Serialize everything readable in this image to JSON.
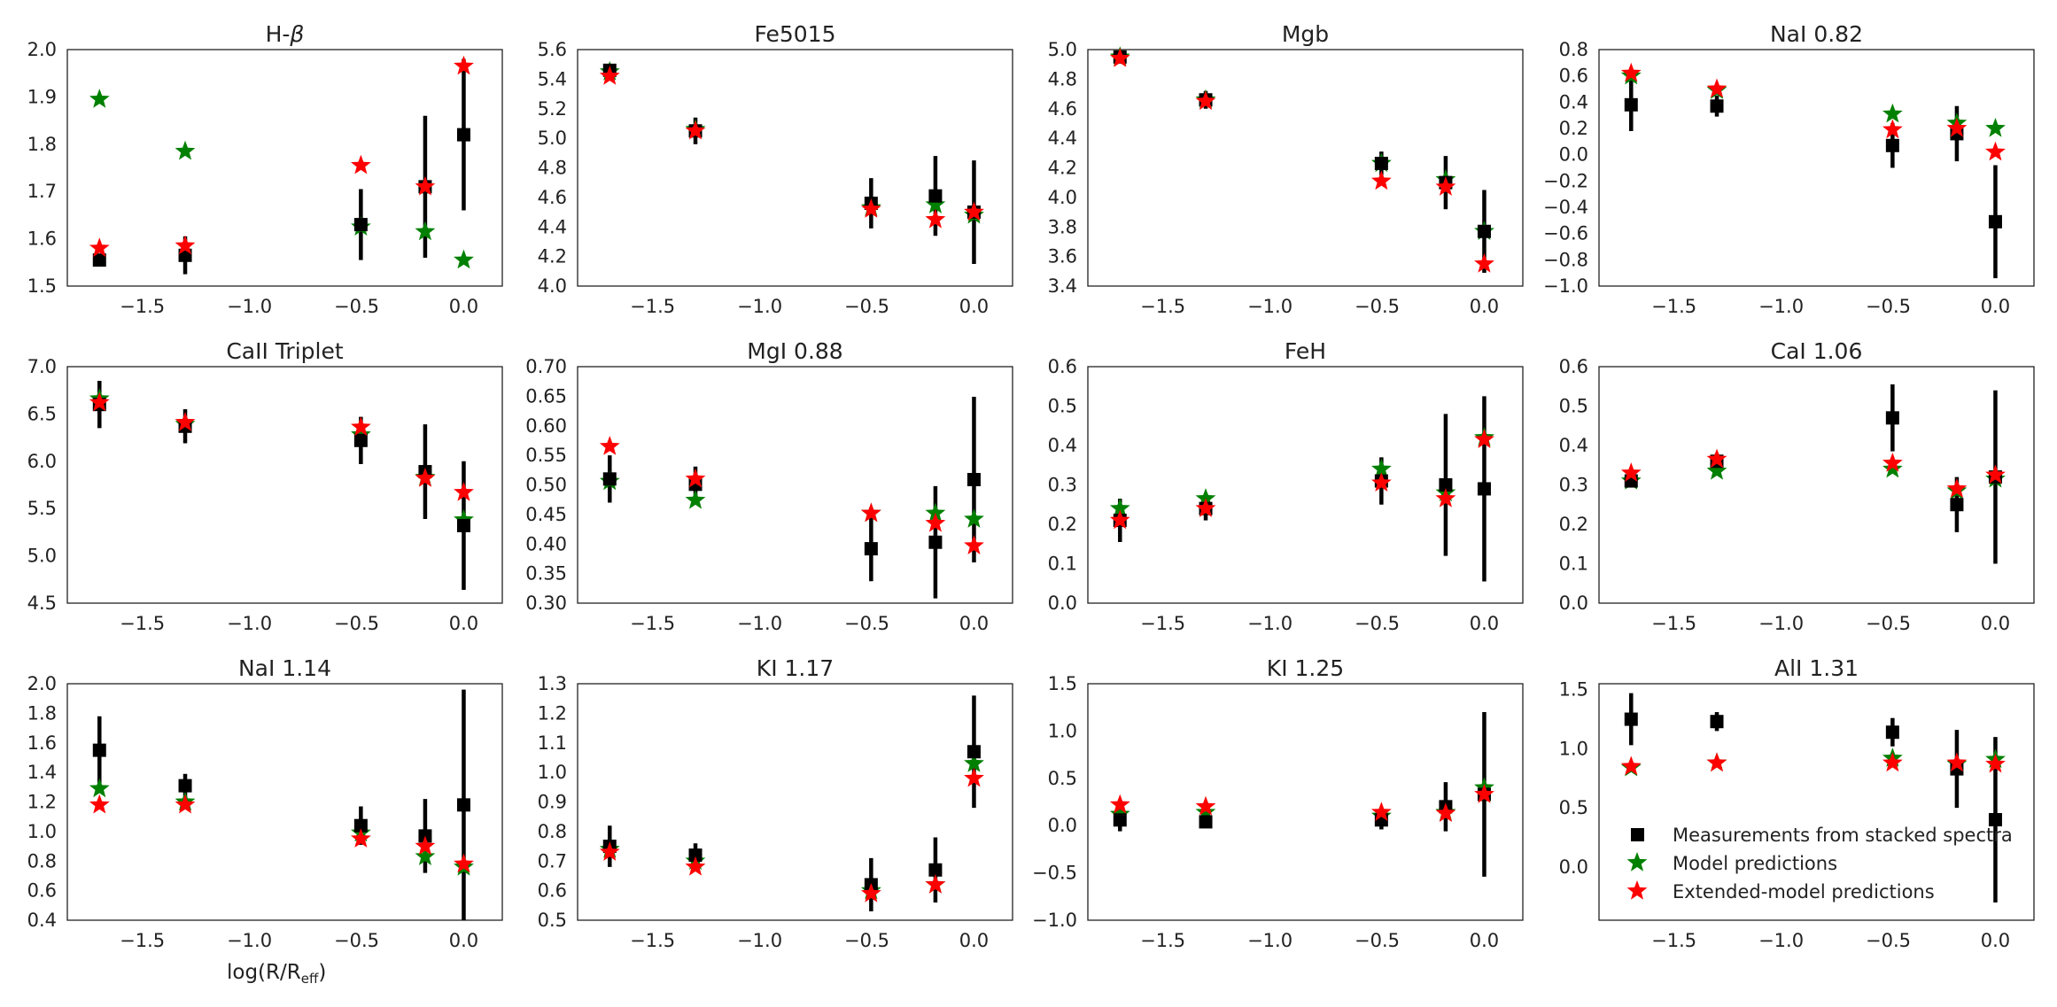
{
  "figure": {
    "xlabel_main": "log(R/R",
    "xlabel_sub": "eff",
    "xlabel_close": ")"
  },
  "legend": {
    "measurements": "Measurements from stacked spectra",
    "model": "Model predictions",
    "extended": "Extended-model predictions"
  },
  "colors": {
    "measurements": "#000000",
    "model": "#008000",
    "extended": "#ff0000",
    "axes": "#222222"
  },
  "chart_data": [
    {
      "type": "scatter",
      "title_main": "H-",
      "title_greek": "β",
      "xlim": [
        -1.85,
        0.18
      ],
      "ylim": [
        1.5,
        2.0
      ],
      "xticks": [
        -1.5,
        -1.0,
        -0.5,
        0.0
      ],
      "xtick_labels": [
        "−1.5",
        "−1.0",
        "−0.5",
        "0.0"
      ],
      "yticks": [
        1.5,
        1.6,
        1.7,
        1.8,
        1.9,
        2.0
      ],
      "ytick_labels": [
        "1.5",
        "1.6",
        "1.7",
        "1.8",
        "1.9",
        "2.0"
      ],
      "x": [
        -1.7,
        -1.3,
        -0.48,
        -0.18,
        0.0
      ],
      "measurements": [
        1.555,
        1.565,
        1.63,
        1.71,
        1.82
      ],
      "errors": [
        0.0,
        0.04,
        0.075,
        0.15,
        0.16
      ],
      "model": [
        1.895,
        1.785,
        1.625,
        1.615,
        1.555
      ],
      "extended": [
        1.58,
        1.585,
        1.755,
        1.71,
        1.965
      ]
    },
    {
      "type": "scatter",
      "title_main": "Fe5015",
      "title_greek": "",
      "xlim": [
        -1.85,
        0.18
      ],
      "ylim": [
        4.0,
        5.6
      ],
      "xticks": [
        -1.5,
        -1.0,
        -0.5,
        0.0
      ],
      "xtick_labels": [
        "−1.5",
        "−1.0",
        "−0.5",
        "0.0"
      ],
      "yticks": [
        4.0,
        4.2,
        4.4,
        4.6,
        4.8,
        5.0,
        5.2,
        5.4,
        5.6
      ],
      "ytick_labels": [
        "4.0",
        "4.2",
        "4.4",
        "4.6",
        "4.8",
        "5.0",
        "5.2",
        "5.4",
        "5.6"
      ],
      "x": [
        -1.7,
        -1.3,
        -0.48,
        -0.18,
        0.0
      ],
      "measurements": [
        5.46,
        5.05,
        4.56,
        4.61,
        4.5
      ],
      "errors": [
        0.03,
        0.09,
        0.17,
        0.27,
        0.35
      ],
      "model": [
        5.45,
        5.06,
        4.53,
        4.55,
        4.48
      ],
      "extended": [
        5.42,
        5.05,
        4.52,
        4.45,
        4.5
      ]
    },
    {
      "type": "scatter",
      "title_main": "Mgb",
      "title_greek": "",
      "xlim": [
        -1.85,
        0.18
      ],
      "ylim": [
        3.4,
        5.0
      ],
      "xticks": [
        -1.5,
        -1.0,
        -0.5,
        0.0
      ],
      "xtick_labels": [
        "−1.5",
        "−1.0",
        "−0.5",
        "0.0"
      ],
      "yticks": [
        3.4,
        3.6,
        3.8,
        4.0,
        4.2,
        4.4,
        4.6,
        4.8,
        5.0
      ],
      "ytick_labels": [
        "3.4",
        "3.6",
        "3.8",
        "4.0",
        "4.2",
        "4.4",
        "4.6",
        "4.8",
        "5.0"
      ],
      "x": [
        -1.7,
        -1.3,
        -0.48,
        -0.18,
        0.0
      ],
      "measurements": [
        4.95,
        4.66,
        4.23,
        4.1,
        3.77
      ],
      "errors": [
        0.03,
        0.06,
        0.08,
        0.18,
        0.28
      ],
      "model": [
        4.95,
        4.66,
        4.23,
        4.12,
        3.77
      ],
      "extended": [
        4.94,
        4.65,
        4.11,
        4.07,
        3.55
      ]
    },
    {
      "type": "scatter",
      "title_main": "NaI 0.82",
      "title_greek": "",
      "xlim": [
        -1.85,
        0.18
      ],
      "ylim": [
        -1.0,
        0.8
      ],
      "xticks": [
        -1.5,
        -1.0,
        -0.5,
        0.0
      ],
      "xtick_labels": [
        "−1.5",
        "−1.0",
        "−0.5",
        "0.0"
      ],
      "yticks": [
        -1.0,
        -0.8,
        -0.6,
        -0.4,
        -0.2,
        0.0,
        0.2,
        0.4,
        0.6,
        0.8
      ],
      "ytick_labels": [
        "−1.0",
        "−0.8",
        "−0.6",
        "−0.4",
        "−0.2",
        "0.0",
        "0.2",
        "0.4",
        "0.6",
        "0.8"
      ],
      "x": [
        -1.7,
        -1.3,
        -0.48,
        -0.18,
        0.0
      ],
      "measurements": [
        0.38,
        0.37,
        0.07,
        0.16,
        -0.51
      ],
      "errors": [
        0.2,
        0.08,
        0.17,
        0.21,
        0.43
      ],
      "model": [
        0.6,
        0.49,
        0.31,
        0.24,
        0.2
      ],
      "extended": [
        0.62,
        0.5,
        0.19,
        0.2,
        0.02
      ]
    },
    {
      "type": "scatter",
      "title_main": "CaII Triplet",
      "title_greek": "",
      "xlim": [
        -1.85,
        0.18
      ],
      "ylim": [
        4.5,
        7.0
      ],
      "xticks": [
        -1.5,
        -1.0,
        -0.5,
        0.0
      ],
      "xtick_labels": [
        "−1.5",
        "−1.0",
        "−0.5",
        "0.0"
      ],
      "yticks": [
        4.5,
        5.0,
        5.5,
        6.0,
        6.5,
        7.0
      ],
      "ytick_labels": [
        "4.5",
        "5.0",
        "5.5",
        "6.0",
        "6.5",
        "7.0"
      ],
      "x": [
        -1.7,
        -1.3,
        -0.48,
        -0.18,
        0.0
      ],
      "measurements": [
        6.6,
        6.37,
        6.22,
        5.89,
        5.32
      ],
      "errors": [
        0.25,
        0.18,
        0.25,
        0.5,
        0.68
      ],
      "model": [
        6.66,
        6.39,
        6.28,
        5.83,
        5.38
      ],
      "extended": [
        6.62,
        6.41,
        6.36,
        5.82,
        5.67
      ]
    },
    {
      "type": "scatter",
      "title_main": "MgI 0.88",
      "title_greek": "",
      "xlim": [
        -1.85,
        0.18
      ],
      "ylim": [
        0.3,
        0.7
      ],
      "xticks": [
        -1.5,
        -1.0,
        -0.5,
        0.0
      ],
      "xtick_labels": [
        "−1.5",
        "−1.0",
        "−0.5",
        "0.0"
      ],
      "yticks": [
        0.3,
        0.35,
        0.4,
        0.45,
        0.5,
        0.55,
        0.6,
        0.65,
        0.7
      ],
      "ytick_labels": [
        "0.30",
        "0.35",
        "0.40",
        "0.45",
        "0.50",
        "0.55",
        "0.60",
        "0.65",
        "0.70"
      ],
      "x": [
        -1.7,
        -1.3,
        -0.48,
        -0.18,
        0.0
      ],
      "measurements": [
        0.51,
        0.501,
        0.392,
        0.403,
        0.509
      ],
      "errors": [
        0.04,
        0.03,
        0.055,
        0.095,
        0.14
      ],
      "model": [
        0.506,
        0.474,
        0.452,
        0.452,
        0.442
      ],
      "extended": [
        0.565,
        0.51,
        0.452,
        0.435,
        0.397
      ]
    },
    {
      "type": "scatter",
      "title_main": "FeH",
      "title_greek": "",
      "xlim": [
        -1.85,
        0.18
      ],
      "ylim": [
        0.0,
        0.6
      ],
      "xticks": [
        -1.5,
        -1.0,
        -0.5,
        0.0
      ],
      "xtick_labels": [
        "−1.5",
        "−1.0",
        "−0.5",
        "0.0"
      ],
      "yticks": [
        0.0,
        0.1,
        0.2,
        0.3,
        0.4,
        0.5,
        0.6
      ],
      "ytick_labels": [
        "0.0",
        "0.1",
        "0.2",
        "0.3",
        "0.4",
        "0.5",
        "0.6"
      ],
      "x": [
        -1.7,
        -1.3,
        -0.48,
        -0.18,
        0.0
      ],
      "measurements": [
        0.21,
        0.24,
        0.31,
        0.3,
        0.29
      ],
      "errors": [
        0.055,
        0.03,
        0.06,
        0.18,
        0.235
      ],
      "model": [
        0.24,
        0.265,
        0.34,
        0.28,
        0.42
      ],
      "extended": [
        0.21,
        0.24,
        0.305,
        0.265,
        0.415
      ]
    },
    {
      "type": "scatter",
      "title_main": "CaI 1.06",
      "title_greek": "",
      "xlim": [
        -1.85,
        0.18
      ],
      "ylim": [
        0.0,
        0.6
      ],
      "xticks": [
        -1.5,
        -1.0,
        -0.5,
        0.0
      ],
      "xtick_labels": [
        "−1.5",
        "−1.0",
        "−0.5",
        "0.0"
      ],
      "yticks": [
        0.0,
        0.1,
        0.2,
        0.3,
        0.4,
        0.5,
        0.6
      ],
      "ytick_labels": [
        "0.0",
        "0.1",
        "0.2",
        "0.3",
        "0.4",
        "0.5",
        "0.6"
      ],
      "x": [
        -1.7,
        -1.3,
        -0.48,
        -0.18,
        0.0
      ],
      "measurements": [
        0.31,
        0.36,
        0.47,
        0.25,
        0.32
      ],
      "errors": [
        0.015,
        0.02,
        0.085,
        0.07,
        0.22
      ],
      "model": [
        0.31,
        0.335,
        0.34,
        0.285,
        0.315
      ],
      "extended": [
        0.33,
        0.365,
        0.355,
        0.29,
        0.325
      ]
    },
    {
      "type": "scatter",
      "title_main": "NaI 1.14",
      "title_greek": "",
      "xlim": [
        -1.85,
        0.18
      ],
      "ylim": [
        0.4,
        2.0
      ],
      "xticks": [
        -1.5,
        -1.0,
        -0.5,
        0.0
      ],
      "xtick_labels": [
        "−1.5",
        "−1.0",
        "−0.5",
        "0.0"
      ],
      "yticks": [
        0.4,
        0.6,
        0.8,
        1.0,
        1.2,
        1.4,
        1.6,
        1.8,
        2.0
      ],
      "ytick_labels": [
        "0.4",
        "0.6",
        "0.8",
        "1.0",
        "1.2",
        "1.4",
        "1.6",
        "1.8",
        "2.0"
      ],
      "x": [
        -1.7,
        -1.3,
        -0.48,
        -0.18,
        0.0
      ],
      "measurements": [
        1.55,
        1.31,
        1.04,
        0.97,
        1.18
      ],
      "errors": [
        0.23,
        0.08,
        0.13,
        0.25,
        0.78
      ],
      "model": [
        1.29,
        1.2,
        0.99,
        0.83,
        0.76
      ],
      "extended": [
        1.18,
        1.18,
        0.95,
        0.9,
        0.78
      ]
    },
    {
      "type": "scatter",
      "title_main": "KI 1.17",
      "title_greek": "",
      "xlim": [
        -1.85,
        0.18
      ],
      "ylim": [
        0.5,
        1.3
      ],
      "xticks": [
        -1.5,
        -1.0,
        -0.5,
        0.0
      ],
      "xtick_labels": [
        "−1.5",
        "−1.0",
        "−0.5",
        "0.0"
      ],
      "yticks": [
        0.5,
        0.6,
        0.7,
        0.8,
        0.9,
        1.0,
        1.1,
        1.2,
        1.3
      ],
      "ytick_labels": [
        "0.5",
        "0.6",
        "0.7",
        "0.8",
        "0.9",
        "1.0",
        "1.1",
        "1.2",
        "1.3"
      ],
      "x": [
        -1.7,
        -1.3,
        -0.48,
        -0.18,
        0.0
      ],
      "measurements": [
        0.75,
        0.72,
        0.62,
        0.67,
        1.07
      ],
      "errors": [
        0.07,
        0.04,
        0.09,
        0.11,
        0.19
      ],
      "model": [
        0.74,
        0.7,
        0.6,
        0.62,
        1.03
      ],
      "extended": [
        0.73,
        0.68,
        0.59,
        0.62,
        0.98
      ]
    },
    {
      "type": "scatter",
      "title_main": "KI 1.25",
      "title_greek": "",
      "xlim": [
        -1.85,
        0.18
      ],
      "ylim": [
        -1.0,
        1.5
      ],
      "xticks": [
        -1.5,
        -1.0,
        -0.5,
        0.0
      ],
      "xtick_labels": [
        "−1.5",
        "−1.0",
        "−0.5",
        "0.0"
      ],
      "yticks": [
        -1.0,
        -0.5,
        0.0,
        0.5,
        1.0,
        1.5
      ],
      "ytick_labels": [
        "−1.0",
        "−0.5",
        "0.0",
        "0.5",
        "1.0",
        "1.5"
      ],
      "x": [
        -1.7,
        -1.3,
        -0.48,
        -0.18,
        0.0
      ],
      "measurements": [
        0.06,
        0.04,
        0.06,
        0.2,
        0.33
      ],
      "errors": [
        0.12,
        0.05,
        0.1,
        0.26,
        0.87
      ],
      "model": [
        0.12,
        0.14,
        0.1,
        0.14,
        0.4
      ],
      "extended": [
        0.22,
        0.2,
        0.14,
        0.13,
        0.33
      ]
    },
    {
      "type": "scatter",
      "title_main": "AlI 1.31",
      "title_greek": "",
      "xlim": [
        -1.85,
        0.18
      ],
      "ylim": [
        -0.45,
        1.55
      ],
      "xticks": [
        -1.5,
        -1.0,
        -0.5,
        0.0
      ],
      "xtick_labels": [
        "−1.5",
        "−1.0",
        "−0.5",
        "0.0"
      ],
      "yticks": [
        0.0,
        0.5,
        1.0,
        1.5
      ],
      "ytick_labels": [
        "0.0",
        "0.5",
        "1.0",
        "1.5"
      ],
      "x": [
        -1.7,
        -1.3,
        -0.48,
        -0.18,
        0.0
      ],
      "measurements": [
        1.25,
        1.23,
        1.14,
        0.83,
        0.4
      ],
      "errors": [
        0.22,
        0.08,
        0.12,
        0.33,
        0.7
      ],
      "model": [
        0.84,
        0.88,
        0.92,
        0.87,
        0.91
      ],
      "extended": [
        0.85,
        0.88,
        0.88,
        0.88,
        0.87
      ]
    }
  ]
}
